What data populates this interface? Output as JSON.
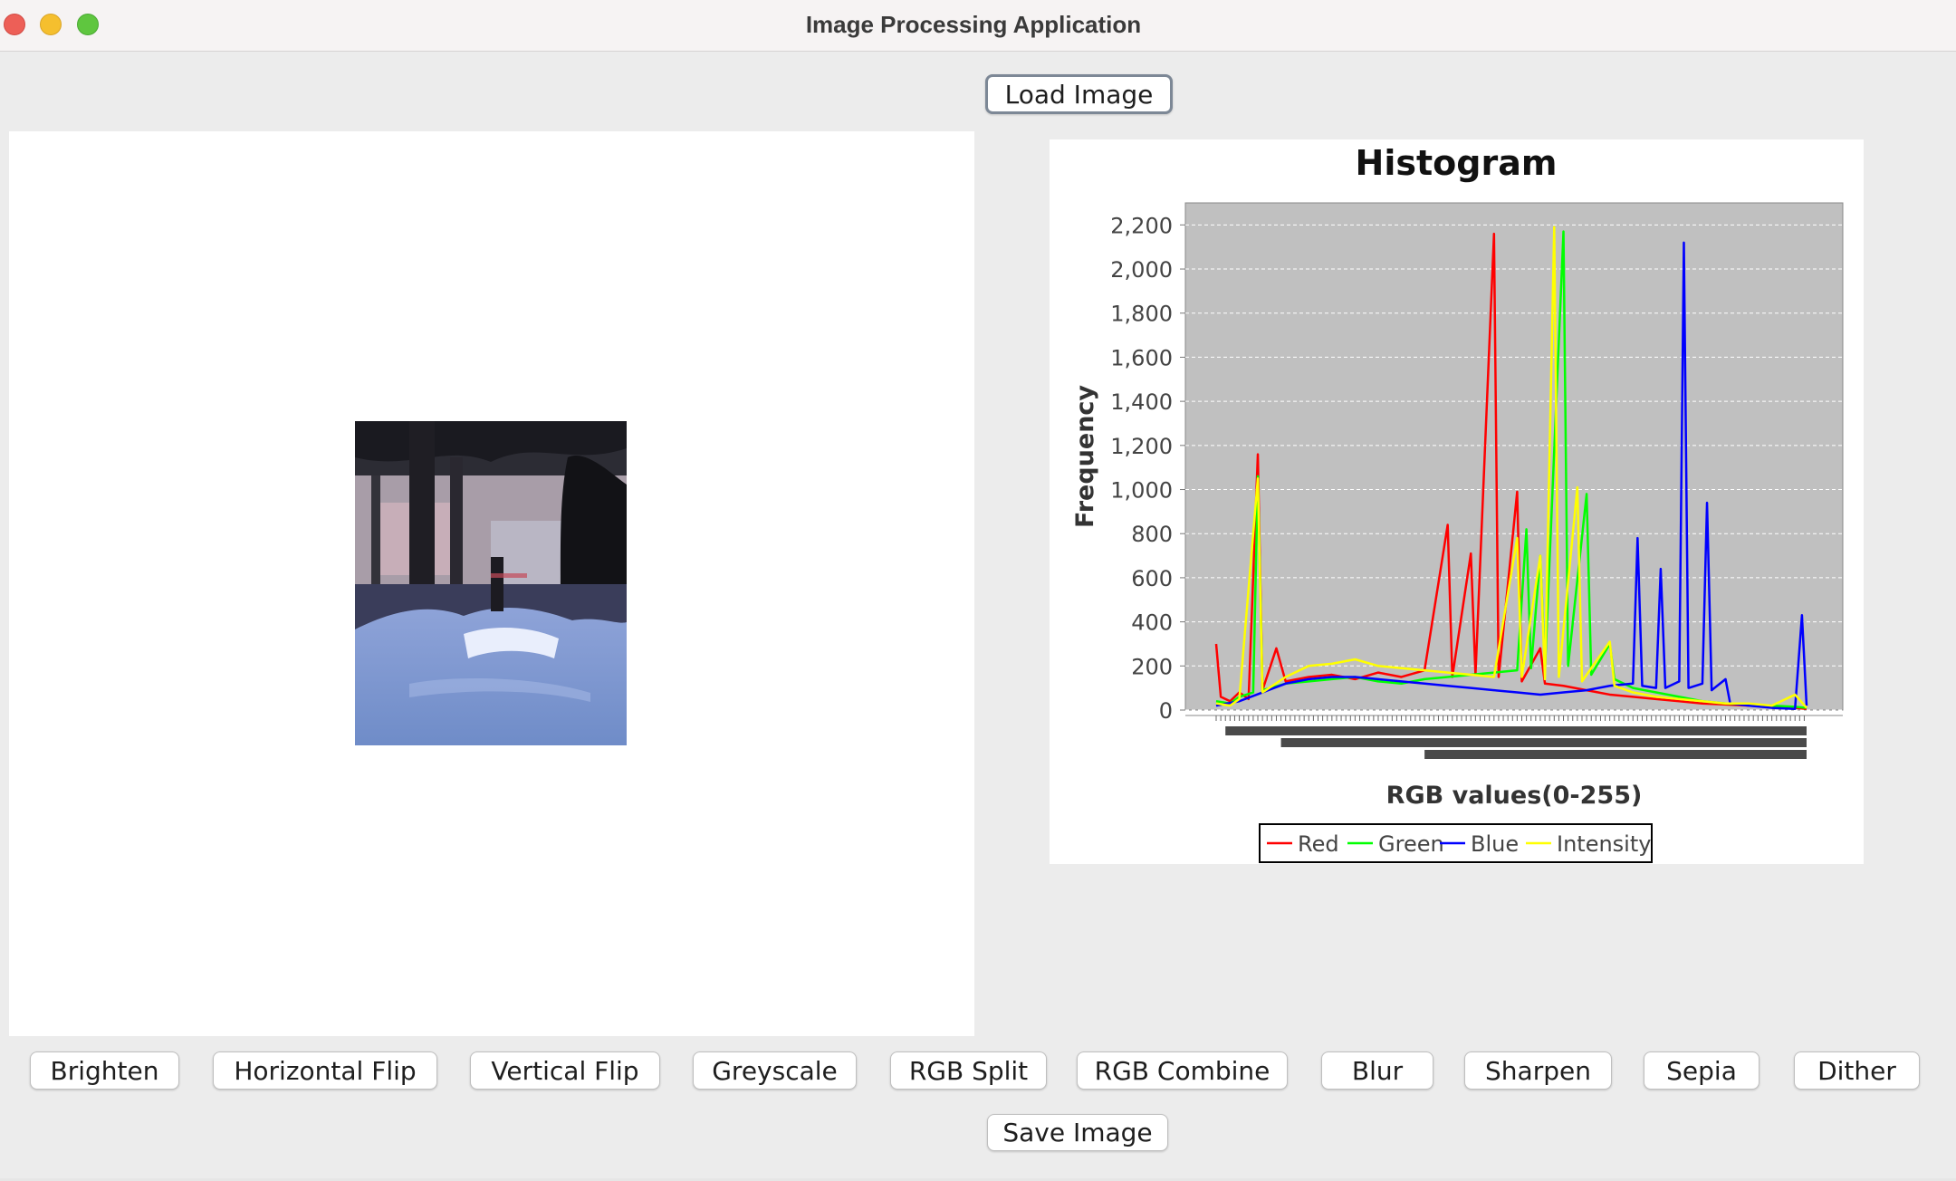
{
  "window": {
    "title": "Image Processing Application"
  },
  "toolbar": {
    "load_label": "Load Image",
    "save_label": "Save Image"
  },
  "operations": [
    {
      "label": "Brighten"
    },
    {
      "label": "Horizontal Flip"
    },
    {
      "label": "Vertical Flip"
    },
    {
      "label": "Greyscale"
    },
    {
      "label": "RGB Split"
    },
    {
      "label": "RGB Combine"
    },
    {
      "label": "Blur"
    },
    {
      "label": "Sharpen"
    },
    {
      "label": "Sepia"
    },
    {
      "label": "Dither"
    }
  ],
  "chart_data": {
    "type": "line",
    "title": "Histogram",
    "xlabel": "RGB values(0-255)",
    "ylabel": "Frequency",
    "xlim": [
      0,
      255
    ],
    "ylim": [
      0,
      2300
    ],
    "yticks": [
      0,
      200,
      400,
      600,
      800,
      1000,
      1200,
      1400,
      1600,
      1800,
      2000,
      2200
    ],
    "ytick_labels": [
      "0",
      "200",
      "400",
      "600",
      "800",
      "1,000",
      "1,200",
      "1,400",
      "1,600",
      "1,800",
      "2,000",
      "2,200"
    ],
    "grid": true,
    "legend_position": "bottom",
    "colors": {
      "plot_bg": "#c0c0c0",
      "grid": "#ffffff"
    },
    "series": [
      {
        "name": "Red",
        "color": "#ff0000",
        "points": [
          [
            0,
            300
          ],
          [
            2,
            60
          ],
          [
            6,
            40
          ],
          [
            10,
            80
          ],
          [
            14,
            50
          ],
          [
            18,
            1160
          ],
          [
            20,
            90
          ],
          [
            26,
            280
          ],
          [
            30,
            130
          ],
          [
            40,
            150
          ],
          [
            50,
            160
          ],
          [
            60,
            140
          ],
          [
            70,
            170
          ],
          [
            80,
            150
          ],
          [
            90,
            180
          ],
          [
            100,
            840
          ],
          [
            102,
            150
          ],
          [
            110,
            710
          ],
          [
            112,
            160
          ],
          [
            120,
            2160
          ],
          [
            122,
            150
          ],
          [
            130,
            990
          ],
          [
            132,
            130
          ],
          [
            140,
            280
          ],
          [
            142,
            120
          ],
          [
            150,
            110
          ],
          [
            160,
            90
          ],
          [
            170,
            70
          ],
          [
            180,
            60
          ],
          [
            190,
            50
          ],
          [
            200,
            40
          ],
          [
            210,
            30
          ],
          [
            220,
            25
          ],
          [
            230,
            20
          ],
          [
            240,
            15
          ],
          [
            250,
            10
          ],
          [
            255,
            5
          ]
        ]
      },
      {
        "name": "Green",
        "color": "#00ff00",
        "points": [
          [
            0,
            40
          ],
          [
            6,
            30
          ],
          [
            10,
            60
          ],
          [
            16,
            80
          ],
          [
            18,
            1060
          ],
          [
            20,
            90
          ],
          [
            30,
            120
          ],
          [
            40,
            130
          ],
          [
            50,
            140
          ],
          [
            60,
            150
          ],
          [
            70,
            130
          ],
          [
            80,
            120
          ],
          [
            90,
            140
          ],
          [
            100,
            150
          ],
          [
            110,
            160
          ],
          [
            120,
            170
          ],
          [
            130,
            180
          ],
          [
            134,
            820
          ],
          [
            136,
            190
          ],
          [
            140,
            700
          ],
          [
            142,
            180
          ],
          [
            150,
            2170
          ],
          [
            152,
            200
          ],
          [
            160,
            980
          ],
          [
            162,
            160
          ],
          [
            170,
            300
          ],
          [
            172,
            140
          ],
          [
            180,
            100
          ],
          [
            190,
            80
          ],
          [
            200,
            60
          ],
          [
            210,
            40
          ],
          [
            220,
            30
          ],
          [
            230,
            25
          ],
          [
            240,
            20
          ],
          [
            250,
            15
          ],
          [
            255,
            10
          ]
        ]
      },
      {
        "name": "Blue",
        "color": "#0000ff",
        "points": [
          [
            0,
            20
          ],
          [
            10,
            40
          ],
          [
            20,
            80
          ],
          [
            30,
            120
          ],
          [
            40,
            140
          ],
          [
            50,
            150
          ],
          [
            60,
            150
          ],
          [
            70,
            140
          ],
          [
            80,
            130
          ],
          [
            90,
            120
          ],
          [
            100,
            110
          ],
          [
            110,
            100
          ],
          [
            120,
            90
          ],
          [
            130,
            80
          ],
          [
            140,
            70
          ],
          [
            150,
            80
          ],
          [
            160,
            90
          ],
          [
            170,
            110
          ],
          [
            180,
            120
          ],
          [
            182,
            780
          ],
          [
            184,
            110
          ],
          [
            190,
            100
          ],
          [
            192,
            640
          ],
          [
            194,
            100
          ],
          [
            200,
            130
          ],
          [
            202,
            2120
          ],
          [
            204,
            100
          ],
          [
            210,
            120
          ],
          [
            212,
            940
          ],
          [
            214,
            90
          ],
          [
            220,
            140
          ],
          [
            222,
            30
          ],
          [
            230,
            20
          ],
          [
            240,
            10
          ],
          [
            250,
            5
          ],
          [
            253,
            430
          ],
          [
            255,
            20
          ]
        ]
      },
      {
        "name": "Intensity",
        "color": "#ffff00",
        "points": [
          [
            0,
            30
          ],
          [
            6,
            20
          ],
          [
            10,
            50
          ],
          [
            18,
            1050
          ],
          [
            20,
            80
          ],
          [
            30,
            150
          ],
          [
            40,
            200
          ],
          [
            50,
            210
          ],
          [
            60,
            230
          ],
          [
            70,
            200
          ],
          [
            80,
            190
          ],
          [
            90,
            180
          ],
          [
            100,
            170
          ],
          [
            110,
            160
          ],
          [
            120,
            150
          ],
          [
            130,
            780
          ],
          [
            132,
            150
          ],
          [
            140,
            700
          ],
          [
            142,
            140
          ],
          [
            146,
            2190
          ],
          [
            148,
            150
          ],
          [
            156,
            1010
          ],
          [
            158,
            130
          ],
          [
            170,
            310
          ],
          [
            172,
            110
          ],
          [
            180,
            80
          ],
          [
            190,
            60
          ],
          [
            200,
            50
          ],
          [
            210,
            40
          ],
          [
            220,
            30
          ],
          [
            230,
            30
          ],
          [
            240,
            20
          ],
          [
            250,
            70
          ],
          [
            255,
            10
          ]
        ]
      }
    ]
  }
}
